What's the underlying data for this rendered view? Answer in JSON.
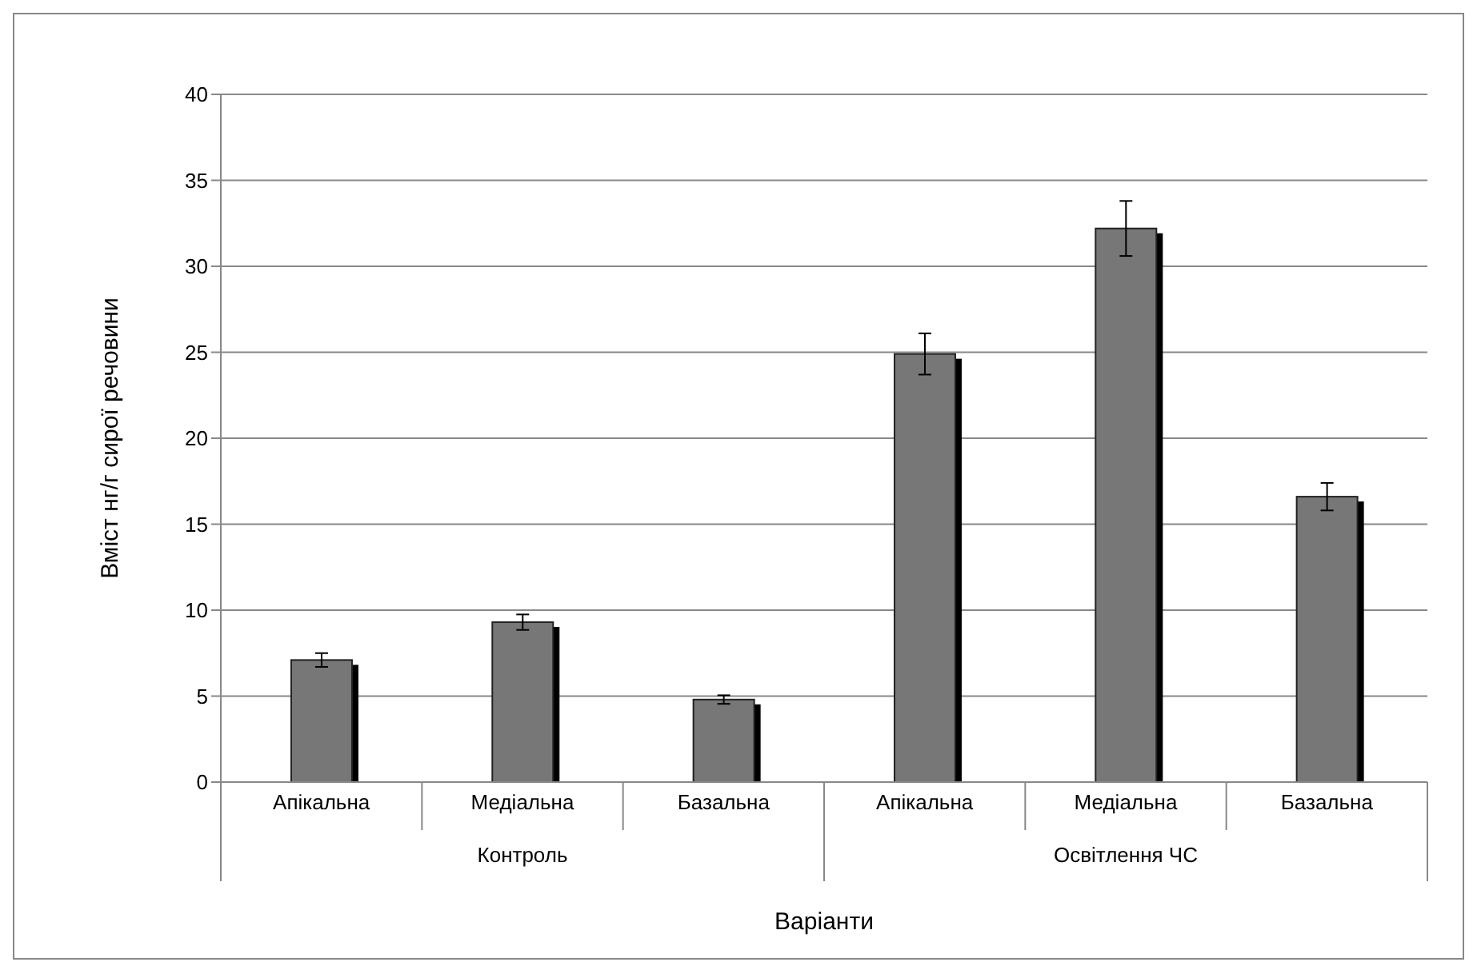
{
  "chart_data": {
    "type": "bar",
    "xlabel": "Варіанти",
    "ylabel": "Вміст нг/г сирої речовини",
    "categories": [
      "Апікальна",
      "Медіальна",
      "Базальна",
      "Апікальна",
      "Медіальна",
      "Базальна"
    ],
    "values": [
      7.1,
      9.3,
      4.8,
      24.9,
      32.2,
      16.6
    ],
    "errors": [
      0.4,
      0.45,
      0.25,
      1.2,
      1.6,
      0.8
    ],
    "color": "#777777",
    "annotations": [
      "Контроль",
      "Освітлення ЧС"
    ],
    "ylim": [
      0,
      40
    ],
    "yticks": [
      0,
      5,
      10,
      15,
      20,
      25,
      30,
      35,
      40
    ],
    "grid": "y"
  }
}
